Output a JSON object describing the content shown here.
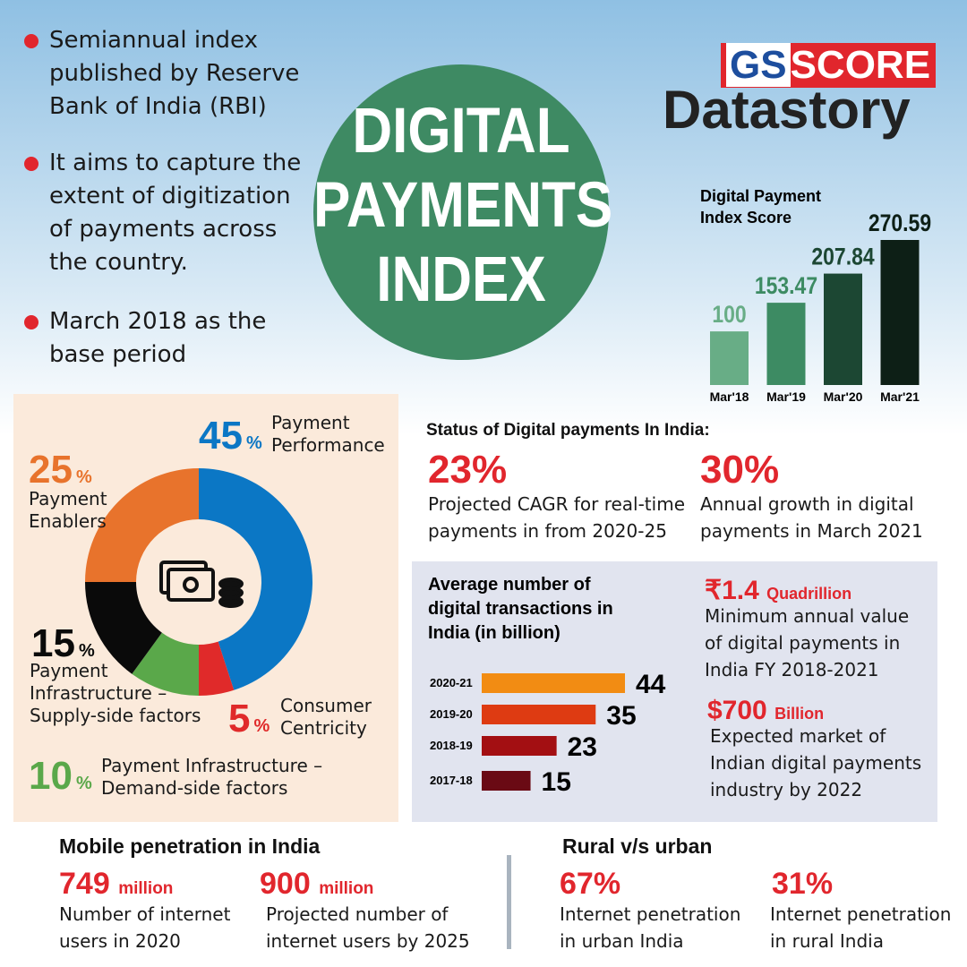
{
  "bullets": [
    "Semiannual index published by Reserve Bank of India (RBI)",
    "It aims to capture the extent of digitization of payments across the country.",
    "March 2018 as the base period"
  ],
  "title_lines": [
    "DIGITAL",
    "PAYMENTS",
    "INDEX"
  ],
  "logo": {
    "brand_left": "GS",
    "brand_right": "SCORE",
    "name": "Datastory"
  },
  "status": {
    "heading": "Status of Digital payments In India:",
    "stats": [
      {
        "value": "23%",
        "text": "Projected CAGR for real-time payments in from 2020-25"
      },
      {
        "value": "30%",
        "text": "Annual growth in digital payments in March 2021"
      }
    ]
  },
  "highlights": [
    {
      "value": "₹1.4",
      "unit": "Quadrillion",
      "text": "Minimum annual value of digital payments in India FY 2018-2021"
    },
    {
      "value": "$700",
      "unit": "Billion",
      "text": "Expected market of Indian digital payments industry by 2022"
    }
  ],
  "mobile": {
    "heading": "Mobile penetration in India",
    "stats": [
      {
        "value": "749",
        "unit": "million",
        "text": "Number of internet users in 2020"
      },
      {
        "value": "900",
        "unit": "million",
        "text": "Projected number of internet users by 2025"
      }
    ]
  },
  "rural_urban": {
    "heading": "Rural v/s urban",
    "stats": [
      {
        "value": "67%",
        "text": "Internet penetration in urban India"
      },
      {
        "value": "31%",
        "text": "Internet penetration in rural India"
      }
    ]
  },
  "chart_data": [
    {
      "type": "bar",
      "title": "Digital Payment Index Score",
      "categories": [
        "Mar'18",
        "Mar'19",
        "Mar'20",
        "Mar'21"
      ],
      "values": [
        100,
        153.47,
        207.84,
        270.59
      ],
      "colors": [
        "#68ad86",
        "#3d8b63",
        "#1c4733",
        "#0d1f16"
      ]
    },
    {
      "type": "pie",
      "donut": true,
      "unit": "%",
      "categories": [
        "Payment Performance",
        "Consumer Centricity",
        "Payment Infrastructure – Demand-side factors",
        "Payment Infrastructure – Supply-side factors",
        "Payment Enablers"
      ],
      "values": [
        45,
        5,
        10,
        15,
        25
      ],
      "colors": [
        "#0b77c5",
        "#e02a2a",
        "#5aa84a",
        "#0a0a0a",
        "#e8732c"
      ]
    },
    {
      "type": "bar",
      "orientation": "horizontal",
      "title": "Average number of digital transactions in India (in billion)",
      "categories": [
        "2020-21",
        "2019-20",
        "2018-19",
        "2017-18"
      ],
      "values": [
        44,
        35,
        23,
        15
      ],
      "colors": [
        "#f28c13",
        "#de3b12",
        "#a30f12",
        "#6a0a14"
      ]
    }
  ]
}
